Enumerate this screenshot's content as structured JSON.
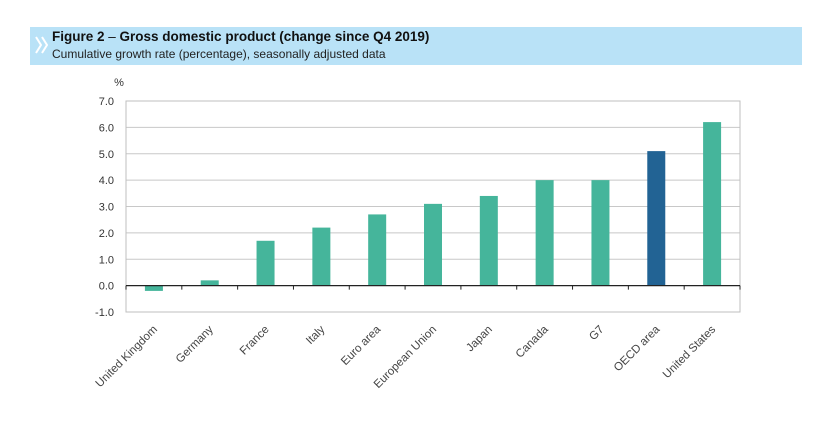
{
  "figure": {
    "label": "Figure 2",
    "dash": " – ",
    "title": "Gross domestic product (change since Q4 2019)",
    "subtitle": "Cumulative growth rate (percentage), seasonally adjusted data"
  },
  "colors": {
    "bar": "#45b59b",
    "highlight": "#226394",
    "header_bg": "#b9e2f7"
  },
  "chart_data": {
    "type": "bar",
    "title": "Gross domestic product (change since Q4 2019)",
    "ylabel": "%",
    "xlabel": "",
    "ylim": [
      -1.0,
      7.0
    ],
    "yticks": [
      -1.0,
      0.0,
      1.0,
      2.0,
      3.0,
      4.0,
      5.0,
      6.0,
      7.0
    ],
    "ytick_labels": [
      "-1.0",
      "0.0",
      "1.0",
      "2.0",
      "3.0",
      "4.0",
      "5.0",
      "6.0",
      "7.0"
    ],
    "grid": true,
    "categories": [
      "United Kingdom",
      "Germany",
      "France",
      "Italy",
      "Euro area",
      "European Union",
      "Japan",
      "Canada",
      "G7",
      "OECD area",
      "United States"
    ],
    "values": [
      -0.2,
      0.2,
      1.7,
      2.2,
      2.7,
      3.1,
      3.4,
      4.0,
      4.0,
      5.1,
      6.2
    ],
    "highlight": [
      "OECD area"
    ]
  }
}
